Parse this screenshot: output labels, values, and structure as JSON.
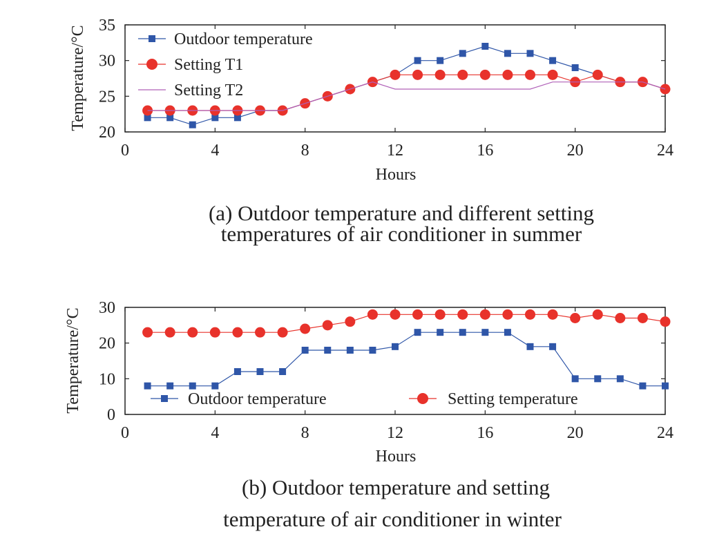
{
  "colors": {
    "outdoor": "#2f56a8",
    "setting": "#e8322b",
    "setting_t2": "#b060b8",
    "axis": "#222222"
  },
  "chart_data": [
    {
      "type": "line",
      "title": "",
      "caption_line1": "(a) Outdoor temperature and different setting",
      "caption_line2": "temperatures of air conditioner in summer",
      "xlabel": "Hours",
      "ylabel": "Temperature/°C",
      "xlim": [
        0,
        24
      ],
      "ylim": [
        20,
        35
      ],
      "xticks": [
        0,
        4,
        8,
        12,
        16,
        20,
        24
      ],
      "yticks": [
        20,
        25,
        30,
        35
      ],
      "x": [
        1,
        2,
        3,
        4,
        5,
        6,
        7,
        8,
        9,
        10,
        11,
        12,
        13,
        14,
        15,
        16,
        17,
        18,
        19,
        20,
        21,
        22,
        23,
        24
      ],
      "series": [
        {
          "name": "Outdoor temperature",
          "marker": "square",
          "color_key": "outdoor",
          "values": [
            22,
            22,
            21,
            22,
            22,
            23,
            23,
            24,
            25,
            26,
            27,
            28,
            30,
            30,
            31,
            32,
            31,
            31,
            30,
            29,
            28,
            27,
            27,
            26
          ]
        },
        {
          "name": "Setting T1",
          "marker": "circle",
          "color_key": "setting",
          "values": [
            23,
            23,
            23,
            23,
            23,
            23,
            23,
            24,
            25,
            26,
            27,
            28,
            28,
            28,
            28,
            28,
            28,
            28,
            28,
            27,
            28,
            27,
            27,
            26
          ]
        },
        {
          "name": "Setting T2",
          "marker": "none",
          "color_key": "setting_t2",
          "values": [
            23,
            23,
            23,
            23,
            23,
            23,
            23,
            24,
            25,
            26,
            27,
            26,
            26,
            26,
            26,
            26,
            26,
            26,
            27,
            27,
            27,
            27,
            27,
            26
          ]
        }
      ],
      "legend_position": "top-left"
    },
    {
      "type": "line",
      "title": "",
      "caption_line1": "(b) Outdoor temperature and  setting",
      "caption_line2": "temperature of air conditioner in winter",
      "xlabel": "Hours",
      "ylabel": "Temperature/°C",
      "xlim": [
        0,
        24
      ],
      "ylim": [
        0,
        30
      ],
      "xticks": [
        0,
        4,
        8,
        12,
        16,
        20,
        24
      ],
      "yticks": [
        0,
        10,
        20,
        30
      ],
      "x": [
        1,
        2,
        3,
        4,
        5,
        6,
        7,
        8,
        9,
        10,
        11,
        12,
        13,
        14,
        15,
        16,
        17,
        18,
        19,
        20,
        21,
        22,
        23,
        24
      ],
      "series": [
        {
          "name": "Outdoor temperature",
          "marker": "square",
          "color_key": "outdoor",
          "values": [
            8,
            8,
            8,
            8,
            12,
            12,
            12,
            18,
            18,
            18,
            18,
            19,
            23,
            23,
            23,
            23,
            23,
            19,
            19,
            10,
            10,
            10,
            8,
            8
          ]
        },
        {
          "name": "Setting temperature",
          "marker": "circle",
          "color_key": "setting",
          "values": [
            23,
            23,
            23,
            23,
            23,
            23,
            23,
            24,
            25,
            26,
            28,
            28,
            28,
            28,
            28,
            28,
            28,
            28,
            28,
            27,
            28,
            27,
            27,
            26
          ]
        }
      ],
      "legend_position": "bottom"
    }
  ]
}
